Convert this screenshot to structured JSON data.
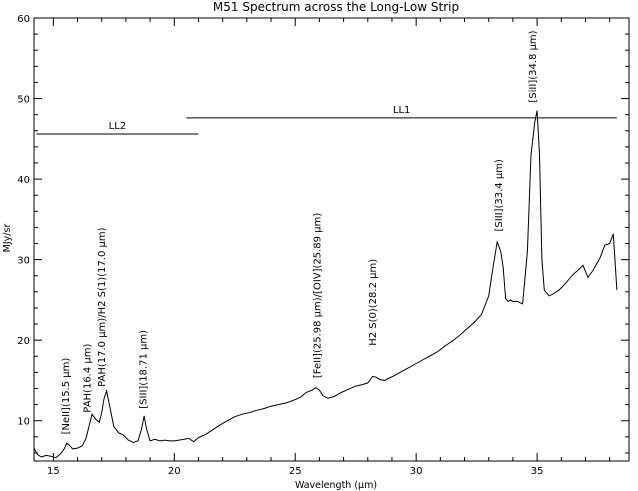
{
  "chart_data": {
    "type": "line",
    "title": "M51 Spectrum across the Long-Low Strip",
    "xlabel": "Wavelength (μm)",
    "ylabel": "MJy/sr",
    "xlim": [
      14.2,
      38.8
    ],
    "ylim": [
      5,
      60
    ],
    "xticks": [
      15,
      20,
      25,
      30,
      35
    ],
    "yticks": [
      10,
      20,
      30,
      40,
      50,
      60
    ],
    "grid": false,
    "series": [
      {
        "x": [
          14.2,
          14.35,
          14.5,
          14.7,
          14.9,
          15.1,
          15.3,
          15.45,
          15.55,
          15.65,
          15.8,
          16.0,
          16.2,
          16.35,
          16.45,
          16.6,
          16.75,
          16.9,
          17.0,
          17.1,
          17.2,
          17.35,
          17.5,
          17.7,
          17.9,
          18.1,
          18.3,
          18.5,
          18.65,
          18.75,
          18.85,
          19.0,
          19.2,
          19.4,
          19.6,
          19.8,
          20.0,
          20.2,
          20.4,
          20.6,
          20.8,
          21.0,
          21.3,
          21.6,
          21.9,
          22.2,
          22.5,
          22.8,
          23.1,
          23.4,
          23.7,
          24.0,
          24.3,
          24.6,
          24.9,
          25.2,
          25.45,
          25.7,
          25.85,
          26.0,
          26.15,
          26.35,
          26.6,
          26.9,
          27.2,
          27.5,
          27.8,
          28.0,
          28.2,
          28.35,
          28.5,
          28.7,
          28.9,
          29.1,
          29.4,
          29.7,
          30.0,
          30.3,
          30.6,
          30.9,
          31.2,
          31.5,
          31.8,
          32.1,
          32.4,
          32.7,
          33.0,
          33.2,
          33.35,
          33.5,
          33.6,
          33.7,
          33.8,
          33.9,
          34.0,
          34.2,
          34.4,
          34.6,
          34.75,
          34.9,
          35.0,
          35.1,
          35.2,
          35.3,
          35.5,
          35.7,
          35.9,
          36.1,
          36.3,
          36.5,
          36.7,
          36.9,
          37.1,
          37.3,
          37.45,
          37.6,
          37.8,
          38.0,
          38.15,
          38.3
        ],
        "y": [
          6.6,
          5.8,
          5.5,
          5.7,
          5.6,
          5.4,
          5.9,
          6.5,
          7.2,
          7.0,
          6.5,
          6.6,
          6.9,
          7.8,
          9.0,
          10.8,
          10.2,
          9.8,
          11.0,
          12.8,
          13.7,
          11.5,
          9.3,
          8.5,
          8.2,
          7.6,
          7.3,
          7.5,
          9.0,
          10.6,
          9.0,
          7.5,
          7.7,
          7.5,
          7.6,
          7.5,
          7.5,
          7.6,
          7.7,
          7.8,
          7.4,
          7.9,
          8.3,
          8.9,
          9.5,
          10.0,
          10.5,
          10.8,
          11.0,
          11.3,
          11.5,
          11.8,
          12.0,
          12.2,
          12.5,
          12.9,
          13.5,
          13.8,
          14.1,
          13.8,
          13.1,
          12.8,
          13.0,
          13.5,
          13.9,
          14.3,
          14.5,
          14.7,
          15.5,
          15.4,
          15.1,
          15.0,
          15.3,
          15.6,
          16.1,
          16.6,
          17.1,
          17.6,
          18.1,
          18.6,
          19.3,
          19.9,
          20.6,
          21.4,
          22.2,
          23.2,
          25.5,
          29.5,
          32.2,
          31.0,
          29.0,
          25.2,
          24.8,
          25.0,
          24.8,
          24.8,
          24.5,
          31.0,
          43.0,
          47.0,
          48.5,
          43.0,
          30.0,
          26.2,
          25.5,
          25.8,
          26.2,
          26.8,
          27.5,
          28.2,
          28.7,
          29.3,
          27.8,
          28.6,
          29.4,
          30.2,
          31.8,
          32.0,
          33.2,
          26.2
        ]
      }
    ],
    "annotations": [
      {
        "label": "[NeII](15.5 μm)",
        "x": 15.5,
        "y": 7.8
      },
      {
        "label": "PAH(16.4 μm)",
        "x": 16.4,
        "y": 10.5
      },
      {
        "label": "PAH(17.0 μm)/H2 S(1)(17.0 μm)",
        "x": 17.0,
        "y": 13.7
      },
      {
        "label": "[SIII](18.71 μm)",
        "x": 18.71,
        "y": 11.0
      },
      {
        "label": "[FeII](25.98 μm)/[OIV](25.89 μm)",
        "x": 25.9,
        "y": 14.8
      },
      {
        "label": "H2 S(0)(28.2 μm)",
        "x": 28.2,
        "y": 18.8
      },
      {
        "label": "[SIII](33.4 μm)",
        "x": 33.4,
        "y": 33.0
      },
      {
        "label": "[SiII](34.8 μm)",
        "x": 34.8,
        "y": 49.0
      }
    ],
    "ranges": [
      {
        "label": "LL2",
        "x_start": 14.3,
        "x_end": 21.0,
        "y": 45.6
      },
      {
        "label": "LL1",
        "x_start": 20.5,
        "x_end": 38.3,
        "y": 47.6
      }
    ]
  }
}
